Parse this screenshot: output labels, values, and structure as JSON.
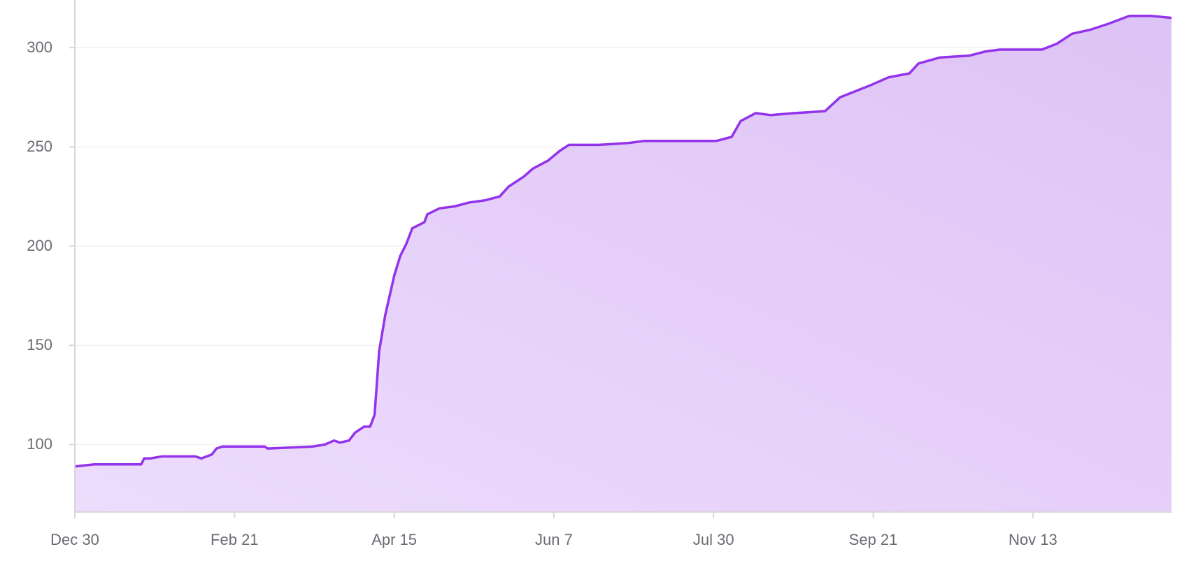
{
  "chart_data": {
    "type": "area",
    "color": "#9333ea",
    "grid": true,
    "x": [
      0,
      6.5,
      22,
      23,
      25,
      29,
      35,
      40,
      42,
      45.5,
      47,
      49,
      63,
      64,
      79,
      83,
      86,
      88,
      91,
      93,
      96,
      98,
      99.5,
      101,
      103,
      106,
      108,
      110,
      112,
      116,
      117,
      121,
      126,
      131,
      136,
      141,
      144,
      149,
      152,
      157,
      161,
      164,
      171,
      174,
      184,
      189,
      196,
      204,
      213,
      218,
      221,
      226,
      231,
      239,
      249,
      254,
      259,
      264,
      270,
      277,
      280,
      287,
      297,
      302,
      307,
      321,
      326,
      331,
      337,
      343,
      350,
      357,
      364
    ],
    "values": [
      89,
      90,
      90,
      93,
      93,
      94,
      94,
      94,
      93,
      95,
      98,
      99,
      99,
      98,
      99,
      100,
      102,
      101,
      102,
      106,
      109,
      109,
      115,
      147,
      165,
      185,
      195,
      201,
      209,
      212,
      216,
      219,
      220,
      222,
      223,
      225,
      230,
      235,
      239,
      243,
      248,
      251,
      251,
      251,
      252,
      253,
      253,
      253,
      253,
      255,
      263,
      267,
      266,
      267,
      268,
      275,
      278,
      281,
      285,
      287,
      292,
      295,
      296,
      298,
      299,
      299,
      302,
      307,
      309,
      312,
      316,
      316,
      315
    ],
    "xlim": [
      0,
      364
    ],
    "xticks": [
      {
        "value": 0,
        "label": "Dec 30"
      },
      {
        "value": 53,
        "label": "Feb 21"
      },
      {
        "value": 106,
        "label": "Apr 15"
      },
      {
        "value": 159,
        "label": "Jun 7"
      },
      {
        "value": 212,
        "label": "Jul 30"
      },
      {
        "value": 265,
        "label": "Sep 21"
      },
      {
        "value": 318,
        "label": "Nov 13"
      }
    ],
    "ylim": [
      66,
      324
    ],
    "yticks": [
      100,
      150,
      200,
      250,
      300
    ]
  }
}
